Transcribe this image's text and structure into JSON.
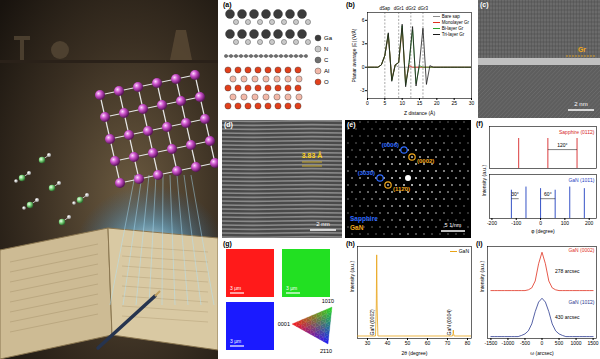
{
  "figure": {
    "panel_labels": [
      "(a)",
      "(b)",
      "(c)",
      "(d)",
      "(e)",
      "(f)",
      "(g)",
      "(h)",
      "(i)"
    ],
    "a": {
      "legend": [
        {
          "name": "Ga",
          "color": "#3b3b3b"
        },
        {
          "name": "N",
          "color": "#c8c8c8"
        },
        {
          "name": "C",
          "color": "#707070"
        },
        {
          "name": "Al",
          "color": "#f2b8a8"
        },
        {
          "name": "O",
          "color": "#e2401c"
        }
      ]
    },
    "c": {
      "label": "Gr",
      "scale_bar": "2 nm"
    },
    "d": {
      "label": "3.83 Å",
      "scale_bar": "2 nm"
    },
    "e": {
      "spots": [
        {
          "label": "(0006)",
          "phase": "Sapphire"
        },
        {
          "label": "(0002)",
          "phase": "GaN"
        },
        {
          "label": "(303̄0)",
          "phase": "Sapphire"
        },
        {
          "label": "(112̄0)",
          "phase": "GaN"
        }
      ],
      "legend": [
        {
          "name": "Sapphire",
          "color": "#2f6bff"
        },
        {
          "name": "GaN",
          "color": "#f0a81e"
        }
      ],
      "scale_bar": "5 1/nm"
    },
    "g": {
      "maps": [
        {
          "color": "#ff1a1a",
          "scale_bar": "3 μm"
        },
        {
          "color": "#22e022",
          "scale_bar": "3 μm"
        },
        {
          "color": "#1a1aff",
          "scale_bar": "3 μm"
        }
      ],
      "ipf_labels": [
        "0001",
        "101̄0",
        "2̄1̄10"
      ]
    }
  },
  "chart_data": [
    {
      "type": "line",
      "x": [
        0,
        1,
        2,
        3,
        4,
        5,
        6,
        7,
        8,
        9,
        10,
        11,
        12,
        13,
        14,
        15,
        16,
        17,
        18,
        19,
        20,
        21,
        22,
        23,
        24,
        25,
        26,
        27,
        28,
        29,
        30
      ],
      "series": [
        {
          "name": "Bare sap",
          "color": "#8c8c8c",
          "values": [
            0,
            0,
            0,
            0,
            0.3,
            1.5,
            4,
            -1.5,
            0.3,
            0,
            0,
            0,
            0,
            0,
            0,
            0,
            0,
            0,
            0,
            0,
            0,
            0,
            0,
            0,
            0,
            0,
            0,
            0,
            0,
            0,
            0
          ]
        },
        {
          "name": "Monolayer Gr",
          "color": "#e0301e",
          "values": [
            0,
            0,
            0,
            0,
            0.3,
            1.5,
            4.2,
            -1.6,
            0.3,
            0.6,
            5,
            -2,
            0.2,
            0,
            0,
            0,
            0,
            0,
            0,
            0,
            0,
            0,
            0,
            0,
            0,
            0,
            0,
            0,
            0,
            0,
            0
          ]
        },
        {
          "name": "Bi-layer Gr",
          "color": "#2ca02c",
          "values": [
            0,
            0,
            0,
            0,
            0.3,
            1.5,
            4.3,
            -1.7,
            0.3,
            0.6,
            5.3,
            -2.3,
            0.6,
            4.8,
            -2.1,
            0.2,
            0,
            0,
            0,
            0,
            0,
            0,
            0,
            0,
            0,
            0,
            0,
            0,
            0,
            0,
            0
          ]
        },
        {
          "name": "Tri-layer Gr",
          "color": "#1a1a1a",
          "values": [
            0,
            0,
            0,
            0,
            0.3,
            1.5,
            4.4,
            -1.8,
            0.3,
            0.6,
            5.5,
            -2.5,
            0.6,
            5.2,
            -2.4,
            0.5,
            5,
            -2.2,
            0.2,
            0,
            0,
            0,
            0,
            0,
            0,
            0,
            0,
            0,
            0,
            0,
            0
          ]
        }
      ],
      "xlim": [
        0,
        30
      ],
      "xticks": [
        0,
        5,
        10,
        15,
        20,
        25,
        30
      ],
      "ylim": [
        -4,
        7
      ],
      "yticks": [
        -3,
        0,
        3,
        6
      ],
      "xlabel": "Z distance (Å)",
      "ylabel": "Planar average |E| (V/Å)",
      "annotations": [
        {
          "x": 5,
          "label": "dSap"
        },
        {
          "x": 9,
          "label": "dGr1"
        },
        {
          "x": 12.5,
          "label": "dGr2"
        },
        {
          "x": 16,
          "label": "dGr3"
        }
      ],
      "legend": "top-right"
    },
    {
      "type": "stick",
      "x": [
        -90,
        30,
        150
      ],
      "series": [
        {
          "name": "Sapphire (011̄2)",
          "color": "#d62728",
          "values": [
            1,
            1,
            1
          ]
        }
      ],
      "xlim": [
        -210,
        230
      ],
      "ylim": [
        0,
        1.4
      ],
      "tick_labels": false,
      "annotations": [
        "120°"
      ]
    },
    {
      "type": "stick",
      "x": [
        -120,
        -60,
        0,
        60,
        120,
        180
      ],
      "series": [
        {
          "name": "GaN (101̄1)",
          "color": "#1f3fbf",
          "values": [
            0.9,
            1,
            0.95,
            0.9,
            1,
            0.95
          ]
        }
      ],
      "xlim": [
        -210,
        230
      ],
      "xticks": [
        -200,
        -100,
        0,
        100,
        200
      ],
      "ylim": [
        0,
        1.4
      ],
      "xlabel": "φ (degree)",
      "ylabel": "Intensity (a.u.)",
      "tick_labels": "x",
      "annotations": [
        "30°",
        "60°"
      ]
    },
    {
      "type": "line",
      "x": [
        25,
        34.0,
        34.4,
        34.6,
        34.8,
        35.2,
        72.5,
        72.8,
        72.9,
        73.0,
        73.3,
        82
      ],
      "series": [
        {
          "name": "GaN",
          "color": "#e8a317",
          "values": [
            0.03,
            0.03,
            0.4,
            1.0,
            0.4,
            0.03,
            0.03,
            0.06,
            0.1,
            0.06,
            0.03,
            0.03
          ]
        }
      ],
      "xlim": [
        25,
        82
      ],
      "xticks": [
        30,
        40,
        50,
        60,
        70,
        80
      ],
      "ylim": [
        0,
        1.1
      ],
      "xlabel": "2θ (degree)",
      "ylabel": "Intensity (a.u.)",
      "tick_labels": "x",
      "legend": "top-right",
      "annotations": [
        "GaN (0002)",
        "GaN (0004)"
      ]
    },
    {
      "type": "line",
      "x": [
        -1500,
        -1400,
        -1300,
        -1200,
        -1100,
        -1000,
        -900,
        -800,
        -700,
        -600,
        -500,
        -400,
        -300,
        -200,
        -100,
        0,
        100,
        200,
        300,
        400,
        500,
        600,
        700,
        800,
        900,
        1000,
        1100,
        1200,
        1300,
        1400,
        1500
      ],
      "series": [
        {
          "name": "GaN (0002)",
          "color": "#e0301e",
          "values": [
            1.25,
            1.25,
            1.25,
            1.25,
            1.25,
            1.25,
            1.25,
            1.25,
            1.25,
            1.25,
            1.25,
            1.27,
            1.32,
            1.5,
            1.95,
            2.25,
            1.95,
            1.5,
            1.32,
            1.27,
            1.25,
            1.25,
            1.25,
            1.25,
            1.25,
            1.25,
            1.25,
            1.25,
            1.25,
            1.25,
            1.25
          ]
        },
        {
          "name": "GaN (101̄2)",
          "color": "#2b3a8f",
          "values": [
            0.05,
            0.05,
            0.05,
            0.05,
            0.05,
            0.05,
            0.05,
            0.05,
            0.05,
            0.08,
            0.12,
            0.2,
            0.38,
            0.7,
            0.95,
            1.05,
            0.95,
            0.7,
            0.38,
            0.2,
            0.12,
            0.08,
            0.05,
            0.05,
            0.05,
            0.05,
            0.05,
            0.05,
            0.05,
            0.05,
            0.05
          ]
        }
      ],
      "xlim": [
        -1600,
        1600
      ],
      "xticks": [
        -1500,
        -1000,
        -500,
        0,
        500,
        1000,
        1500
      ],
      "ylim": [
        0,
        2.4
      ],
      "xlabel": "ω (arcsec)",
      "ylabel": "Intensity (a.u.)",
      "tick_labels": "x",
      "annotations": [
        "278 arcsec",
        "430 arcsec"
      ]
    }
  ]
}
